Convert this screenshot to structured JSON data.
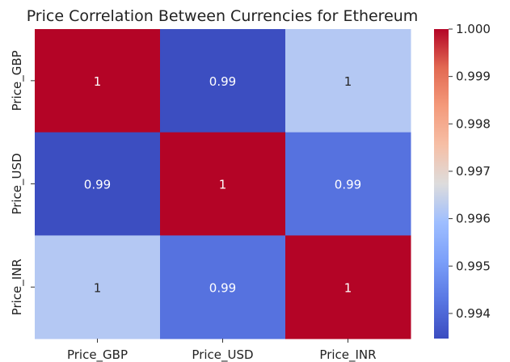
{
  "chart_data": {
    "type": "heatmap",
    "title": "Price Correlation Between Currencies for Ethereum",
    "x_categories": [
      "Price_GBP",
      "Price_USD",
      "Price_INR"
    ],
    "y_categories": [
      "Price_GBP",
      "Price_USD",
      "Price_INR"
    ],
    "values": [
      [
        1.0,
        0.9935,
        0.9962
      ],
      [
        0.9935,
        1.0,
        0.9942
      ],
      [
        0.9962,
        0.9942,
        1.0
      ]
    ],
    "annotations": [
      [
        "1",
        "0.99",
        "1"
      ],
      [
        "0.99",
        "1",
        "0.99"
      ],
      [
        "1",
        "0.99",
        "1"
      ]
    ],
    "colormap": "coolwarm",
    "colorbar": {
      "range": [
        0.99347,
        1.0
      ],
      "ticks": [
        "1.000",
        "0.999",
        "0.998",
        "0.997",
        "0.996",
        "0.995",
        "0.994"
      ],
      "tick_values": [
        1.0,
        0.999,
        0.998,
        0.997,
        0.996,
        0.995,
        0.994
      ]
    }
  }
}
